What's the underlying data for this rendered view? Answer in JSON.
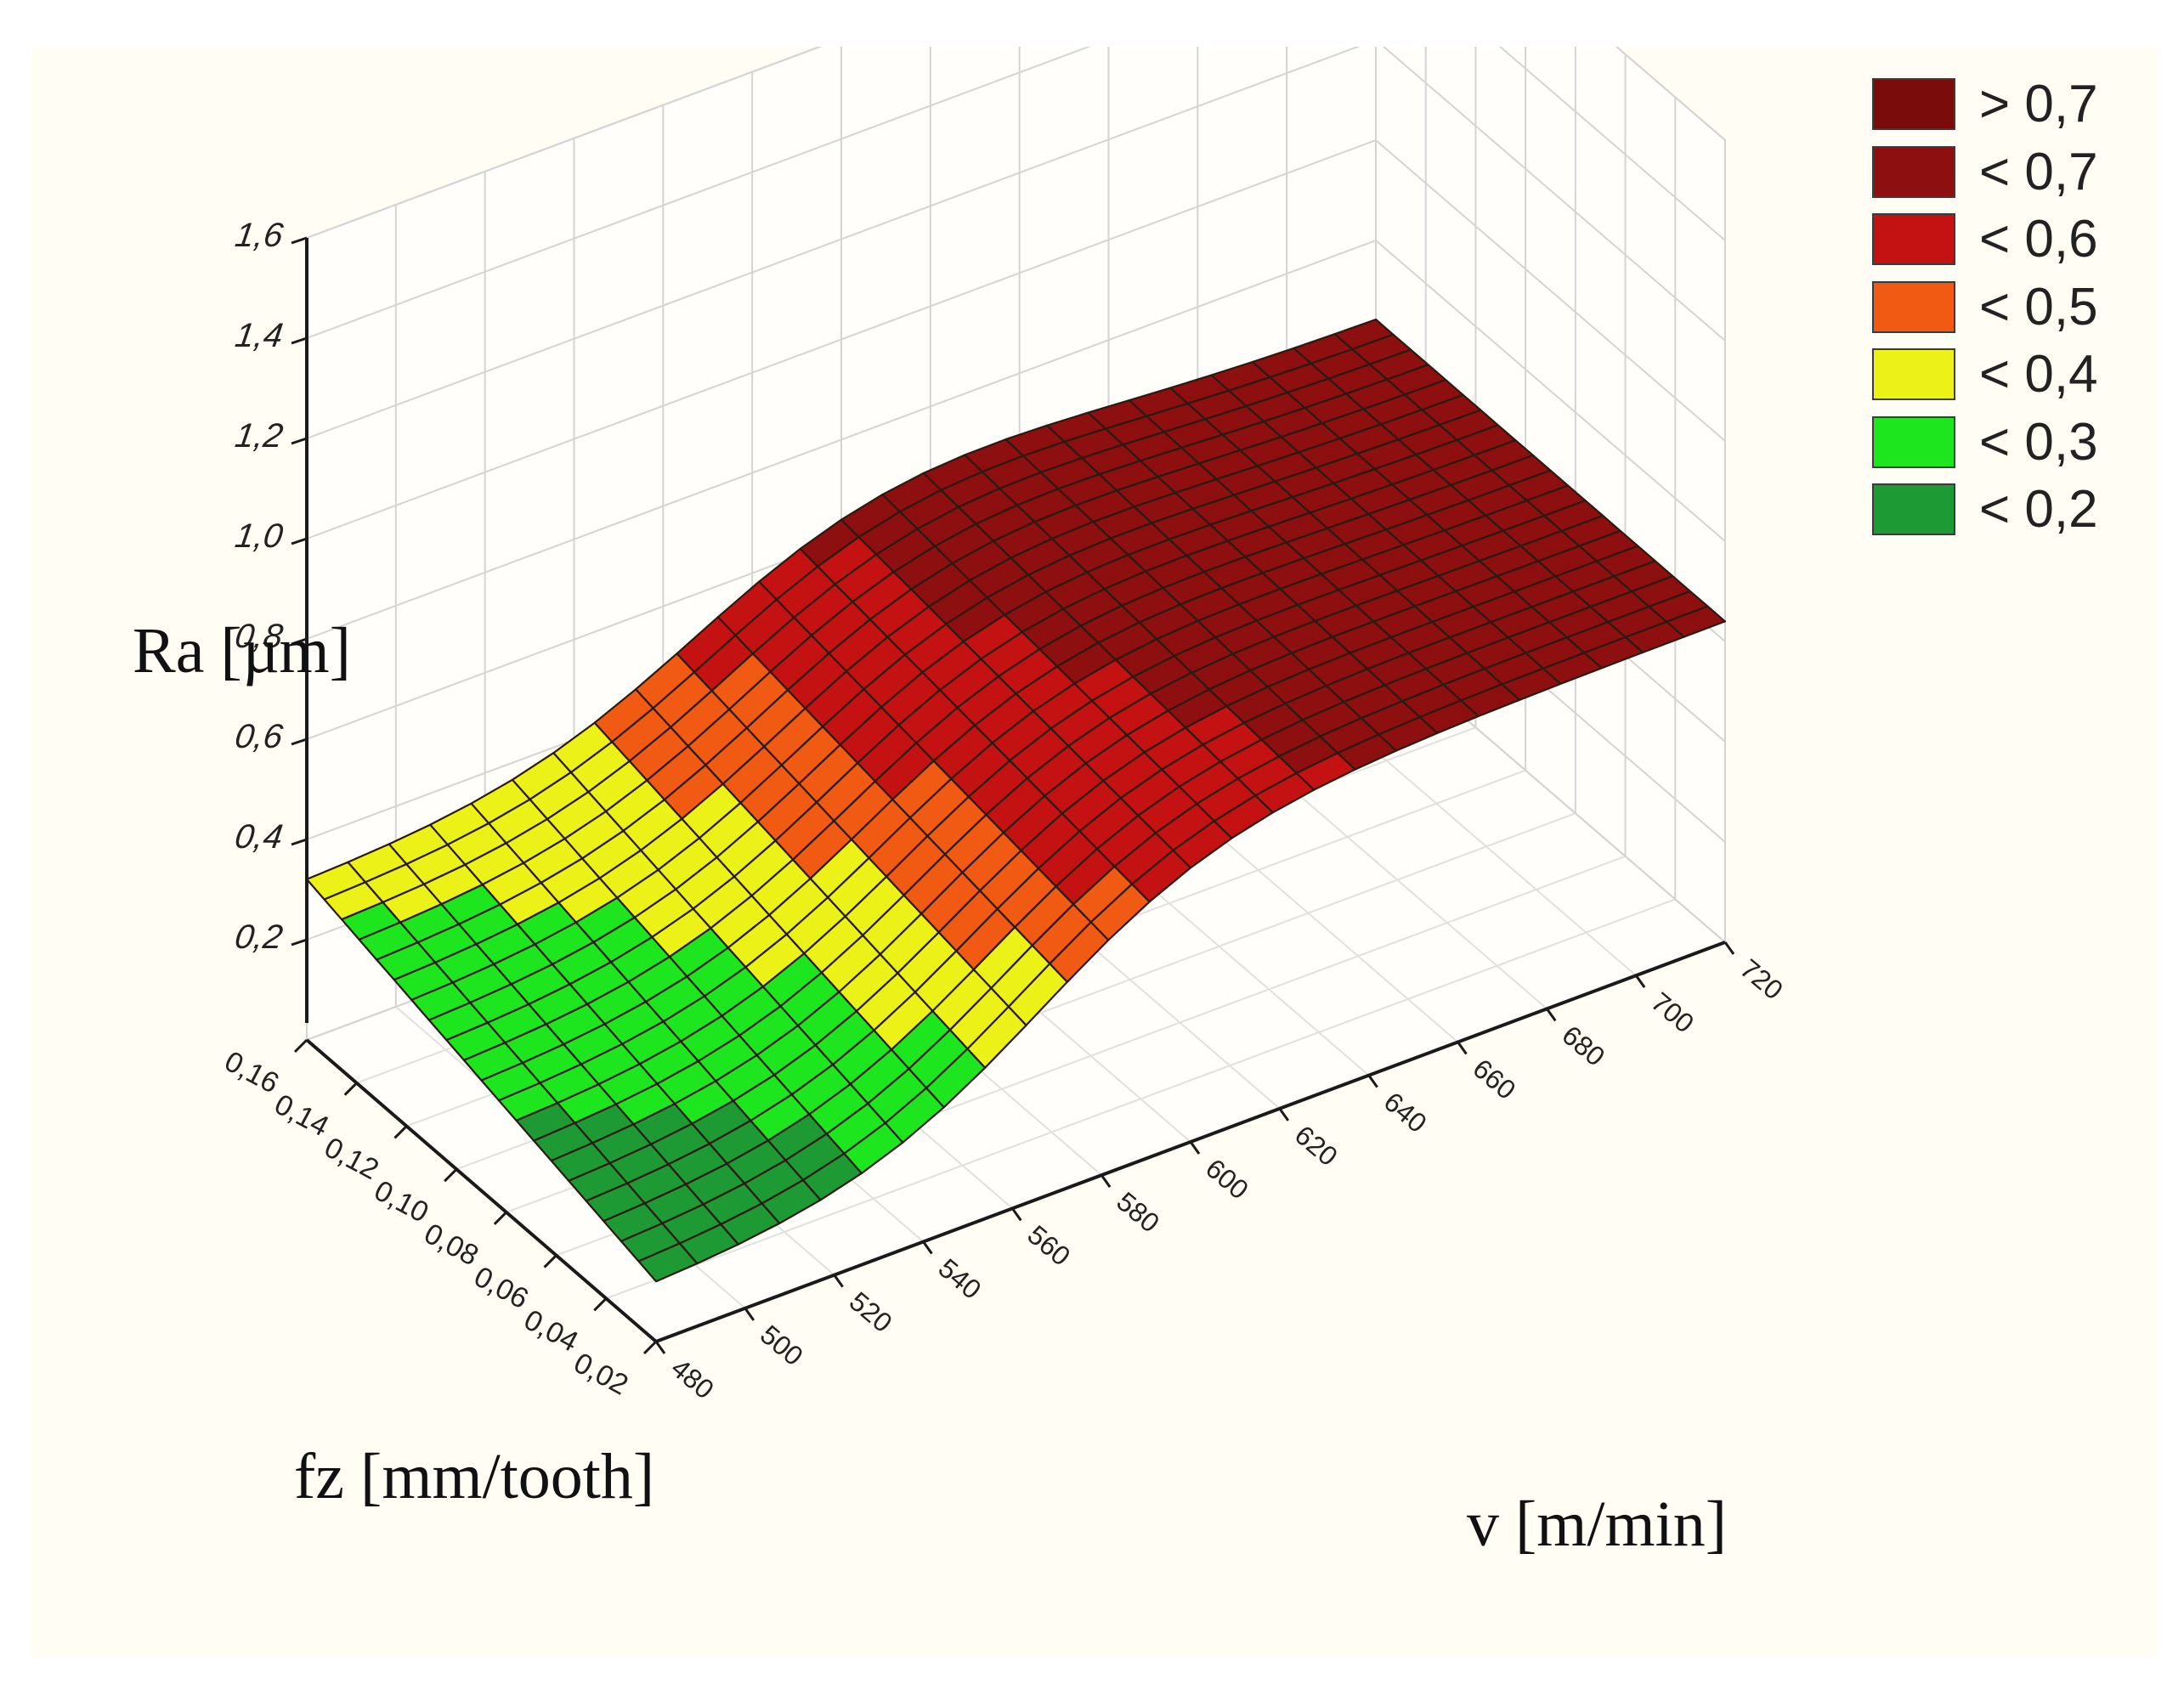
{
  "chart_data": {
    "type": "surface3d",
    "title": "",
    "zlabel": "Ra [µm]",
    "ylabel": "fz [mm/tooth]",
    "xlabel": "v [m/min]",
    "zlim": [
      0,
      1.6
    ],
    "z_ticks": [
      "1,6",
      "1,4",
      "1,2",
      "1,0",
      "0,8",
      "0,6",
      "0,4",
      "0,2"
    ],
    "fz_ticks": [
      "0,16",
      "0,14",
      "0,12",
      "0,10",
      "0,08",
      "0,06",
      "0,04",
      "0,02"
    ],
    "v_ticks": [
      "480",
      "500",
      "520",
      "540",
      "560",
      "580",
      "600",
      "620",
      "640",
      "660",
      "680",
      "700",
      "720"
    ],
    "fz_range": [
      0.02,
      0.16
    ],
    "v_range": [
      480,
      720
    ],
    "corner_values": {
      "fz_0.16_v_480": 0.32,
      "fz_0.16_v_720": 0.64,
      "fz_0.02_v_480": 0.12,
      "fz_0.02_v_720": 0.64,
      "peak_fz_0.16_v_600": 0.7
    },
    "grid": true
  },
  "legend": {
    "items": [
      {
        "label": "> 0,7",
        "color": "#7a0c0c"
      },
      {
        "label": "< 0,7",
        "color": "#8e0f0f"
      },
      {
        "label": "< 0,6",
        "color": "#c41212"
      },
      {
        "label": "< 0,5",
        "color": "#f05a12"
      },
      {
        "label": "< 0,4",
        "color": "#ecf218"
      },
      {
        "label": "< 0,3",
        "color": "#1ee61e"
      },
      {
        "label": "< 0,2",
        "color": "#1e9a34"
      }
    ]
  }
}
